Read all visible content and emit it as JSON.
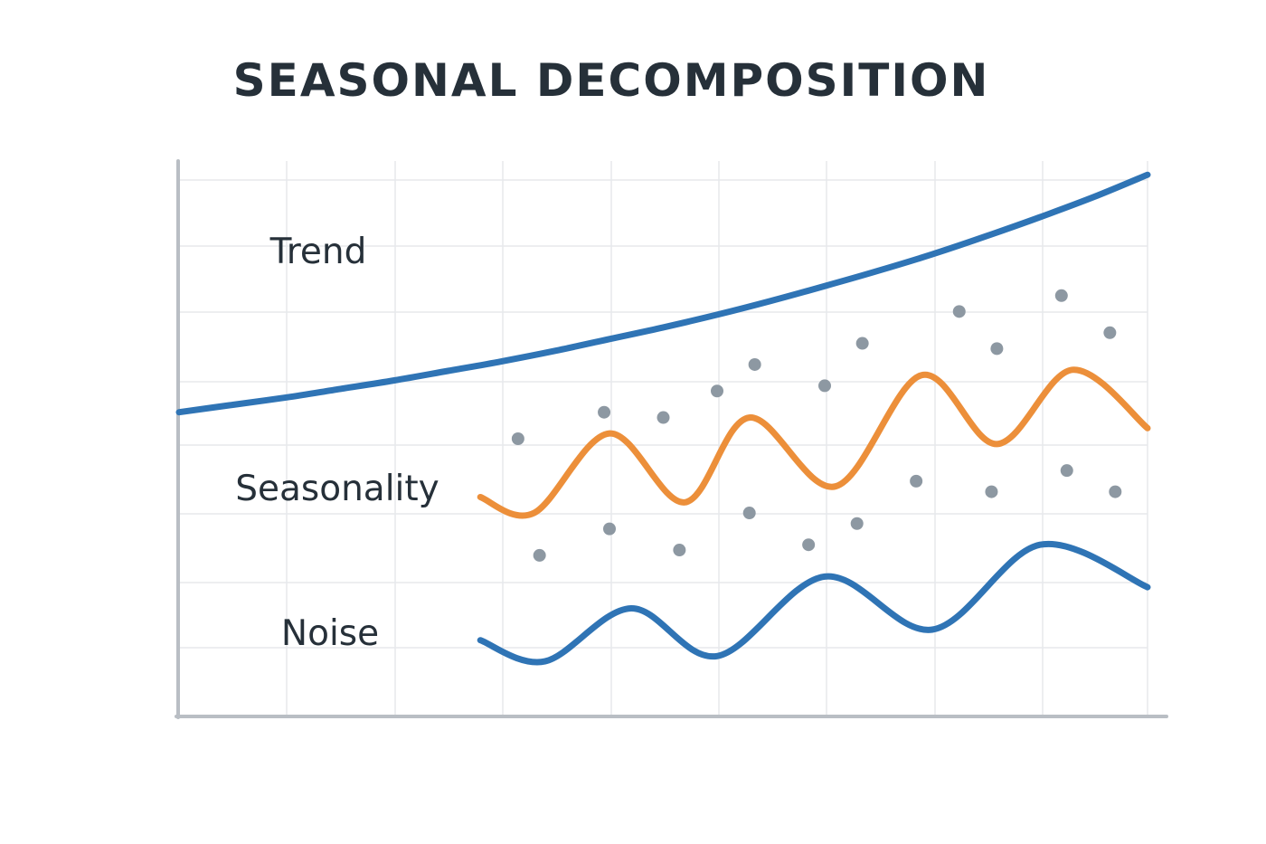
{
  "chart_data": {
    "type": "line",
    "title": "SEASONAL DECOMPOSITION",
    "xlabel": "",
    "ylabel": "",
    "grid": true,
    "x_range": [
      0,
      9
    ],
    "y_range": [
      0,
      10
    ],
    "colors": {
      "trend": "#2f74b5",
      "seasonality": "#ec8f3a",
      "noise_line": "#2f74b5",
      "noise_points": "#8d98a2",
      "grid": "#e7e9ec",
      "axis": "#b9bec4",
      "text": "#263039"
    },
    "series": [
      {
        "name": "Trend",
        "color": "#2f74b5",
        "x": [
          0,
          0.5,
          1,
          1.5,
          2,
          2.5,
          3,
          3.5,
          4,
          4.5,
          5,
          5.5,
          6,
          6.5,
          7,
          7.5,
          8,
          8.5,
          9
        ],
        "y": [
          5.5,
          5.64,
          5.78,
          5.94,
          6.1,
          6.28,
          6.46,
          6.66,
          6.88,
          7.1,
          7.34,
          7.6,
          7.88,
          8.17,
          8.48,
          8.82,
          9.18,
          9.56,
          9.98
        ]
      },
      {
        "name": "Seasonality",
        "color": "#ec8f3a",
        "x": [
          2.8,
          3.3,
          4.0,
          4.7,
          5.3,
          6.1,
          6.9,
          7.6,
          8.3,
          9.0
        ],
        "y": [
          3.9,
          3.6,
          5.1,
          3.8,
          5.4,
          4.1,
          6.2,
          4.9,
          6.3,
          5.2
        ]
      },
      {
        "name": "Noise",
        "color": "#2f74b5",
        "x": [
          2.8,
          3.4,
          4.2,
          5.0,
          6.0,
          7.0,
          8.0,
          9.0
        ],
        "y": [
          1.2,
          0.8,
          1.8,
          0.9,
          2.4,
          1.4,
          3.0,
          2.2
        ]
      }
    ],
    "points": {
      "name": "Noise points",
      "color": "#8d98a2",
      "x": [
        3.15,
        3.35,
        3.95,
        4.0,
        4.5,
        4.65,
        5.0,
        5.3,
        5.35,
        5.85,
        6.0,
        6.3,
        6.35,
        6.85,
        7.25,
        7.55,
        7.6,
        8.2,
        8.25,
        8.65,
        8.7
      ],
      "y": [
        5.0,
        2.8,
        5.5,
        3.3,
        5.4,
        2.9,
        5.9,
        3.6,
        6.4,
        3.0,
        6.0,
        3.4,
        6.8,
        4.2,
        7.4,
        4.0,
        6.7,
        7.7,
        4.4,
        7.0,
        4.0
      ]
    },
    "labels": [
      "Trend",
      "Seasonality",
      "Noise"
    ]
  }
}
